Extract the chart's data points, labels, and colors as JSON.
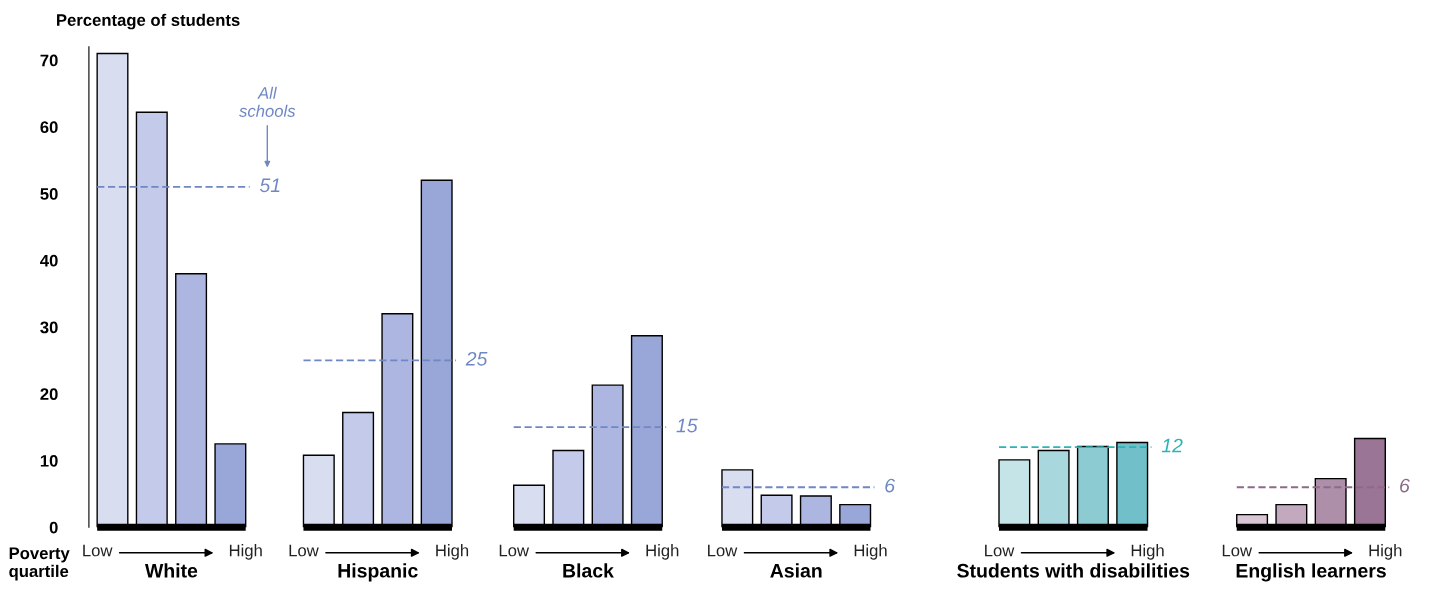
{
  "chart_data": {
    "type": "bar",
    "ylabel": "Percentage of students",
    "categories": [
      "White",
      "Hispanic",
      "Black",
      "Asian",
      "Students with disabilities",
      "English learners"
    ],
    "series": [
      {
        "values": [
          71,
          10.8,
          6.3,
          8.6,
          10.1,
          1.9
        ],
        "colors": [
          "#d9ddf0",
          "#d9ddf0",
          "#d9ddf0",
          "#d9ddf0",
          "#c4e4e7",
          "#d8c6d4"
        ]
      },
      {
        "values": [
          62.2,
          17.2,
          11.5,
          4.8,
          11.5,
          3.4
        ],
        "colors": [
          "#c3caea",
          "#c3caea",
          "#c3caea",
          "#c3caea",
          "#a8d8dd",
          "#c2a9be"
        ]
      },
      {
        "values": [
          38,
          32,
          21.3,
          4.7,
          12.1,
          7.3
        ],
        "colors": [
          "#adb6e0",
          "#adb6e0",
          "#adb6e0",
          "#adb6e0",
          "#8ccbd2",
          "#ad8fa9"
        ]
      },
      {
        "values": [
          12.5,
          52,
          28.7,
          3.4,
          12.7,
          13.3
        ],
        "colors": [
          "#98a6d8",
          "#98a6d8",
          "#98a6d8",
          "#98a6d8",
          "#70bfc9",
          "#9b7595"
        ]
      }
    ],
    "ylim": [
      0,
      72
    ],
    "yticks": [
      0,
      10,
      20,
      30,
      40,
      50,
      60,
      70
    ],
    "grid": false,
    "legend": false,
    "ref_lines": [
      {
        "axis": "y",
        "value": 51,
        "label": "51",
        "color": "#6f88c4",
        "line_style": "dashed"
      },
      {
        "axis": "y",
        "value": 25,
        "label": "25",
        "color": "#6f88c4",
        "line_style": "dashed"
      },
      {
        "axis": "y",
        "value": 15,
        "label": "15",
        "color": "#6f88c4",
        "line_style": "dashed"
      },
      {
        "axis": "y",
        "value": 6,
        "label": "6",
        "color": "#6f88c4",
        "line_style": "dashed"
      },
      {
        "axis": "y",
        "value": 12,
        "label": "12",
        "color": "#2ab3b8",
        "line_style": "dashed"
      },
      {
        "axis": "y",
        "value": 6,
        "label": "6",
        "color": "#8e6a89",
        "line_style": "dashed"
      }
    ],
    "annotations": [
      "All\nschools",
      "Poverty\nquartile",
      "Low",
      "High"
    ]
  }
}
